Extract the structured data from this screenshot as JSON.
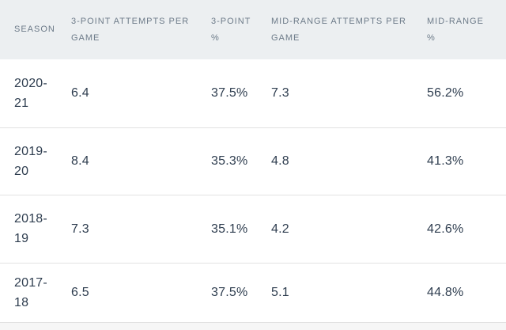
{
  "table": {
    "headers": [
      "SEASON",
      "3-POINT ATTEMPTS PER\nGAME",
      "3-POINT\n%",
      "MID-RANGE ATTEMPTS PER\nGAME",
      "MID-RANGE\n%"
    ],
    "rows": [
      [
        "2020-21",
        "6.4",
        "37.5%",
        "7.3",
        "56.2%"
      ],
      [
        "2019-20",
        "8.4",
        "35.3%",
        "4.8",
        "41.3%"
      ],
      [
        "2018-19",
        "7.3",
        "35.1%",
        "4.2",
        "42.6%"
      ],
      [
        "2017-18",
        "6.5",
        "37.5%",
        "5.1",
        "44.8%"
      ]
    ]
  },
  "chart_data": {
    "type": "table",
    "columns": [
      "Season",
      "3-Point Attempts per Game",
      "3-Point %",
      "Mid-Range Attempts per Game",
      "Mid-Range %"
    ],
    "rows": [
      [
        "2020-21",
        6.4,
        37.5,
        7.3,
        56.2
      ],
      [
        "2019-20",
        8.4,
        35.3,
        4.8,
        41.3
      ],
      [
        "2018-19",
        7.3,
        35.1,
        4.2,
        42.6
      ],
      [
        "2017-18",
        6.5,
        37.5,
        5.1,
        44.8
      ]
    ],
    "percent_columns": [
      "3-Point %",
      "Mid-Range %"
    ]
  },
  "colors": {
    "header_bg": "#ECEFF1",
    "header_text": "#6D7B89",
    "data_text": "#2E3D4F",
    "divider": "#E2E2E2",
    "page_bg": "#F6F6F6",
    "table_bg": "#FFFFFF"
  }
}
